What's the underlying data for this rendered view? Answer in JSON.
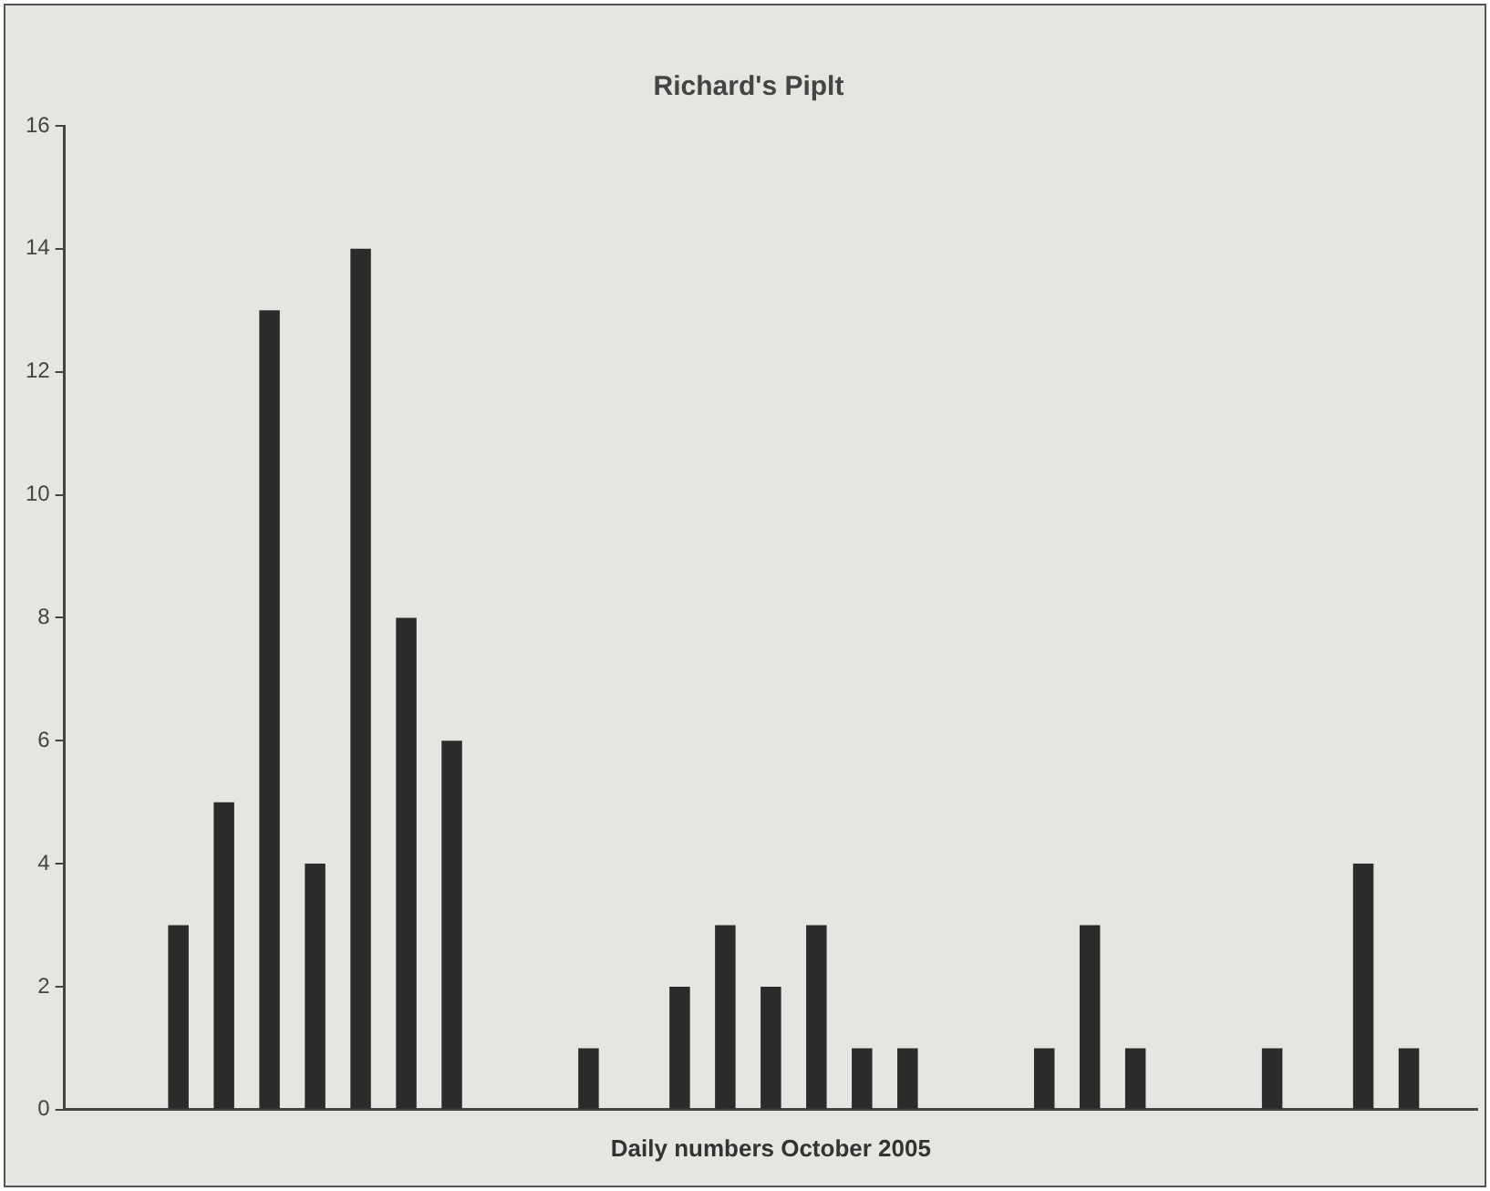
{
  "chart_data": {
    "type": "bar",
    "title": "Richard's Piplt",
    "xlabel": "Daily numbers October 2005",
    "categories": [
      null,
      null,
      null,
      null,
      null,
      null,
      null,
      null,
      null,
      null,
      null,
      null,
      null,
      null,
      null,
      null,
      null,
      null,
      null,
      null,
      null,
      null,
      null,
      null,
      null,
      null,
      null,
      null,
      null,
      null,
      null
    ],
    "values": [
      0,
      0,
      3,
      5,
      13,
      4,
      14,
      8,
      6,
      0,
      0,
      1,
      0,
      2,
      3,
      2,
      3,
      1,
      1,
      0,
      0,
      1,
      3,
      1,
      0,
      0,
      1,
      0,
      4,
      1,
      0
    ],
    "color": "#2b2b2b",
    "ylim": [
      0,
      16
    ],
    "yticks": [
      0,
      2,
      4,
      6,
      8,
      10,
      12,
      14,
      16
    ],
    "grid": false,
    "legend": false
  }
}
